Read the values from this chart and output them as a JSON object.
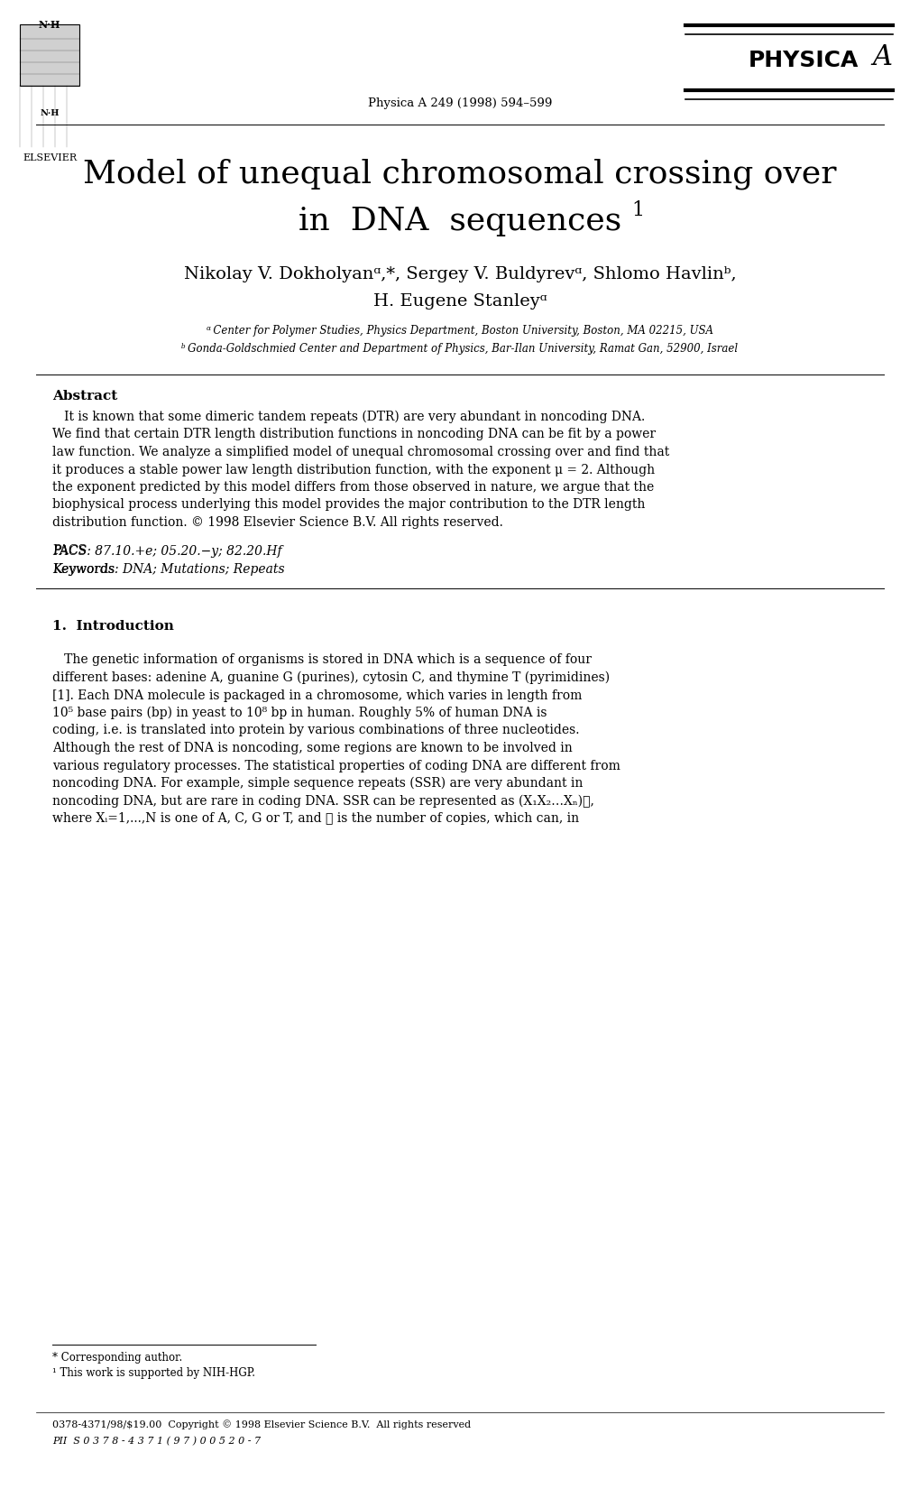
{
  "bg_color": "#ffffff",
  "journal_line": "Physica A 249 (1998) 594–599",
  "elsevier_text": "ELSEVIER",
  "title_line1": "Model of unequal chromosomal crossing over",
  "title_line2": "in  DNA  sequences",
  "title_sup": "1",
  "author_line1": "Nikolay V. Dokholyanᵅ,*, Sergey V. Buldyrevᵅ, Shlomo Havlinᵇ,",
  "author_line2": "H. Eugene Stanleyᵅ",
  "affil_a": "ᵅ Center for Polymer Studies, Physics Department, Boston University, Boston, MA 02215, USA",
  "affil_b": "ᵇ Gonda-Goldschmied Center and Department of Physics, Bar-Ilan University, Ramat Gan, 52900, Israel",
  "abstract_head": "Abstract",
  "abstract_lines": [
    "   It is known that some dimeric tandem repeats (DTR) are very abundant in noncoding DNA.",
    "We find that certain DTR length distribution functions in noncoding DNA can be fit by a power",
    "law function. We analyze a simplified model of unequal chromosomal crossing over and find that",
    "it produces a stable power law length distribution function, with the exponent μ = 2. Although",
    "the exponent predicted by this model differs from those observed in nature, we argue that the",
    "biophysical process underlying this model provides the major contribution to the DTR length",
    "distribution function. © 1998 Elsevier Science B.V. All rights reserved."
  ],
  "pacs": "PACS: 87.10.+e; 05.20.−y; 82.20.Hf",
  "keywords": "Keywords: DNA; Mutations; Repeats",
  "sec1_title": "1.  Introduction",
  "intro_lines": [
    "   The genetic information of organisms is stored in DNA which is a sequence of four",
    "different bases: adenine A, guanine G (purines), cytosin C, and thymine T (pyrimidines)",
    "[1]. Each DNA molecule is packaged in a chromosome, which varies in length from",
    "10⁵ base pairs (bp) in yeast to 10⁸ bp in human. Roughly 5% of human DNA is",
    "coding, i.e. is translated into protein by various combinations of three nucleotides.",
    "Although the rest of DNA is noncoding, some regions are known to be involved in",
    "various regulatory processes. The statistical properties of coding DNA are different from",
    "noncoding DNA. For example, simple sequence repeats (SSR) are very abundant in",
    "noncoding DNA, but are rare in coding DNA. SSR can be represented as (X₁X₂…Xₙ)ℓ,",
    "where Xᵢ=1,...,N is one of A, C, G or T, and ℓ is the number of copies, which can, in"
  ],
  "footnote1": "* Corresponding author.",
  "footnote2": "¹ This work is supported by NIH-HGP.",
  "copy_line1": "0378-4371/98/$19.00  Copyright © 1998 Elsevier Science B.V.  All rights reserved",
  "copy_line2": "PII  S 0 3 7 8 - 4 3 7 1 ( 9 7 ) 0 0 5 2 0 - 7"
}
